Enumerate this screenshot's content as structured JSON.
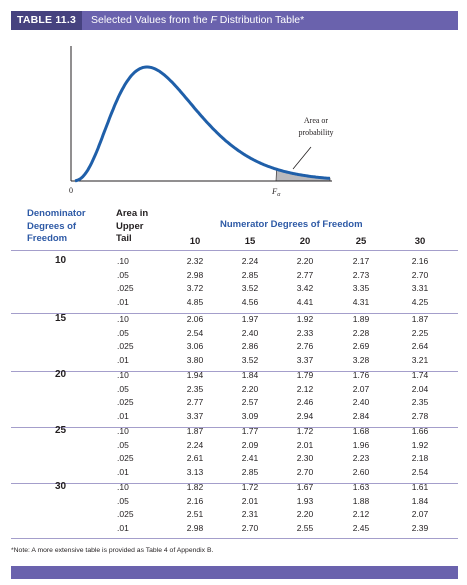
{
  "header": {
    "table_number": "TABLE 11.3",
    "title_before": "Selected Values from the ",
    "title_italic": "F",
    "title_after": " Distribution Table*"
  },
  "figure": {
    "annotation_line1": "Area or",
    "annotation_line2": "probability",
    "zero_label": "0",
    "f_alpha_label": "F",
    "f_alpha_sub": "α",
    "colors": {
      "curve": "#1f5fa9",
      "shade": "#b9b9bd",
      "axis": "#231f20"
    }
  },
  "table": {
    "denominator_heading": [
      "Denominator",
      "Degrees of",
      "Freedom"
    ],
    "tail_heading": [
      "Area in",
      "Upper",
      "Tail"
    ],
    "numerator_heading": "Numerator Degrees of Freedom",
    "numerator_df": [
      "10",
      "15",
      "20",
      "25",
      "30"
    ],
    "groups": [
      {
        "df": "10",
        "rows": [
          {
            "tail": ".10",
            "values": [
              "2.32",
              "2.24",
              "2.20",
              "2.17",
              "2.16"
            ]
          },
          {
            "tail": ".05",
            "values": [
              "2.98",
              "2.85",
              "2.77",
              "2.73",
              "2.70"
            ]
          },
          {
            "tail": ".025",
            "values": [
              "3.72",
              "3.52",
              "3.42",
              "3.35",
              "3.31"
            ]
          },
          {
            "tail": ".01",
            "values": [
              "4.85",
              "4.56",
              "4.41",
              "4.31",
              "4.25"
            ]
          }
        ]
      },
      {
        "df": "15",
        "rows": [
          {
            "tail": ".10",
            "values": [
              "2.06",
              "1.97",
              "1.92",
              "1.89",
              "1.87"
            ]
          },
          {
            "tail": ".05",
            "values": [
              "2.54",
              "2.40",
              "2.33",
              "2.28",
              "2.25"
            ]
          },
          {
            "tail": ".025",
            "values": [
              "3.06",
              "2.86",
              "2.76",
              "2.69",
              "2.64"
            ]
          },
          {
            "tail": ".01",
            "values": [
              "3.80",
              "3.52",
              "3.37",
              "3.28",
              "3.21"
            ]
          }
        ]
      },
      {
        "df": "20",
        "rows": [
          {
            "tail": ".10",
            "values": [
              "1.94",
              "1.84",
              "1.79",
              "1.76",
              "1.74"
            ]
          },
          {
            "tail": ".05",
            "values": [
              "2.35",
              "2.20",
              "2.12",
              "2.07",
              "2.04"
            ]
          },
          {
            "tail": ".025",
            "values": [
              "2.77",
              "2.57",
              "2.46",
              "2.40",
              "2.35"
            ]
          },
          {
            "tail": ".01",
            "values": [
              "3.37",
              "3.09",
              "2.94",
              "2.84",
              "2.78"
            ]
          }
        ]
      },
      {
        "df": "25",
        "rows": [
          {
            "tail": ".10",
            "values": [
              "1.87",
              "1.77",
              "1.72",
              "1.68",
              "1.66"
            ]
          },
          {
            "tail": ".05",
            "values": [
              "2.24",
              "2.09",
              "2.01",
              "1.96",
              "1.92"
            ]
          },
          {
            "tail": ".025",
            "values": [
              "2.61",
              "2.41",
              "2.30",
              "2.23",
              "2.18"
            ]
          },
          {
            "tail": ".01",
            "values": [
              "3.13",
              "2.85",
              "2.70",
              "2.60",
              "2.54"
            ]
          }
        ]
      },
      {
        "df": "30",
        "rows": [
          {
            "tail": ".10",
            "values": [
              "1.82",
              "1.72",
              "1.67",
              "1.63",
              "1.61"
            ]
          },
          {
            "tail": ".05",
            "values": [
              "2.16",
              "2.01",
              "1.93",
              "1.88",
              "1.84"
            ]
          },
          {
            "tail": ".025",
            "values": [
              "2.51",
              "2.31",
              "2.20",
              "2.12",
              "2.07"
            ]
          },
          {
            "tail": ".01",
            "values": [
              "2.98",
              "2.70",
              "2.55",
              "2.45",
              "2.39"
            ]
          }
        ]
      }
    ]
  },
  "note": "*Note: A more extensive table is provided as Table 4 of Appendix B."
}
